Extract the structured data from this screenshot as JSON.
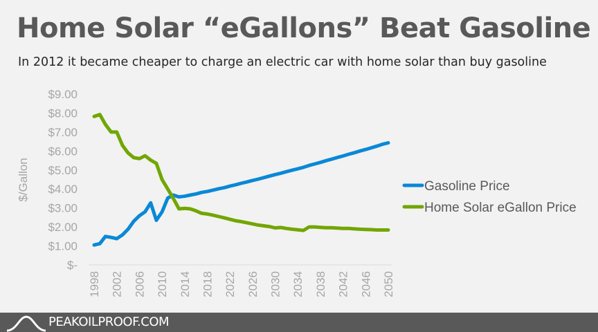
{
  "title": "Home Solar “eGallons” Beat Gasoline",
  "subtitle": "In 2012 it became cheaper to charge an electric car with home solar than buy gasoline",
  "footer": {
    "brand": "PEAKOILPROOF.COM",
    "logo_icon": "mountain-curve-icon"
  },
  "chart_data": {
    "type": "line",
    "title": "Home Solar “eGallons” Beat Gasoline",
    "subtitle": "In 2012 it became cheaper to charge an electric car with home solar than buy gasoline",
    "ylabel": "$/Gallon",
    "xlabel": "",
    "ylim": [
      0,
      9
    ],
    "xlim": [
      1998,
      2050
    ],
    "y_ticks": [
      "$-",
      "$1.00",
      "$2.00",
      "$3.00",
      "$4.00",
      "$5.00",
      "$6.00",
      "$7.00",
      "$8.00",
      "$9.00"
    ],
    "x_ticks": [
      "1998",
      "2002",
      "2006",
      "2010",
      "2014",
      "2018",
      "2022",
      "2026",
      "2030",
      "2034",
      "2038",
      "2042",
      "2046",
      "2050"
    ],
    "grid": false,
    "legend_position": "right",
    "x_start": 1998,
    "series": [
      {
        "name": "Gasoline Price",
        "color": "#0a88d6",
        "values": [
          1.05,
          1.12,
          1.5,
          1.45,
          1.38,
          1.58,
          1.88,
          2.3,
          2.59,
          2.8,
          3.27,
          2.35,
          2.79,
          3.52,
          3.68,
          3.58,
          3.62,
          3.68,
          3.74,
          3.82,
          3.87,
          3.94,
          4.01,
          4.07,
          4.15,
          4.22,
          4.3,
          4.37,
          4.45,
          4.52,
          4.6,
          4.68,
          4.76,
          4.83,
          4.91,
          4.99,
          5.06,
          5.14,
          5.24,
          5.32,
          5.4,
          5.49,
          5.57,
          5.66,
          5.74,
          5.83,
          5.91,
          6.0,
          6.08,
          6.17,
          6.26,
          6.36,
          6.43
        ]
      },
      {
        "name": "Home Solar eGallon Price",
        "color": "#72a600",
        "values": [
          7.82,
          7.92,
          7.4,
          7.0,
          7.0,
          6.3,
          5.9,
          5.65,
          5.6,
          5.75,
          5.52,
          5.35,
          4.5,
          4.0,
          3.5,
          2.95,
          2.98,
          2.95,
          2.85,
          2.72,
          2.68,
          2.62,
          2.55,
          2.48,
          2.4,
          2.33,
          2.28,
          2.22,
          2.16,
          2.1,
          2.06,
          2.02,
          1.95,
          1.97,
          1.92,
          1.88,
          1.85,
          1.82,
          2.0,
          2.0,
          1.98,
          1.96,
          1.96,
          1.94,
          1.92,
          1.92,
          1.9,
          1.88,
          1.87,
          1.86,
          1.84,
          1.84,
          1.84
        ]
      }
    ]
  }
}
